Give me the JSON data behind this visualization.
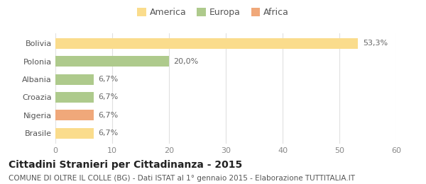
{
  "categories": [
    "Brasile",
    "Nigeria",
    "Croazia",
    "Albania",
    "Polonia",
    "Bolivia"
  ],
  "values": [
    6.7,
    6.7,
    6.7,
    6.7,
    20.0,
    53.3
  ],
  "bar_colors": [
    "#FADC8C",
    "#F0A87A",
    "#AECA8C",
    "#AECA8C",
    "#AECA8C",
    "#FADC8C"
  ],
  "bar_labels": [
    "6,7%",
    "6,7%",
    "6,7%",
    "6,7%",
    "20,0%",
    "53,3%"
  ],
  "legend_labels": [
    "America",
    "Europa",
    "Africa"
  ],
  "legend_colors": [
    "#FADC8C",
    "#AECA8C",
    "#F0A87A"
  ],
  "xlim": [
    0,
    60
  ],
  "xticks": [
    0,
    10,
    20,
    30,
    40,
    50,
    60
  ],
  "title": "Cittadini Stranieri per Cittadinanza - 2015",
  "subtitle": "COMUNE DI OLTRE IL COLLE (BG) - Dati ISTAT al 1° gennaio 2015 - Elaborazione TUTTITALIA.IT",
  "title_fontsize": 10,
  "subtitle_fontsize": 7.5,
  "label_fontsize": 8,
  "tick_fontsize": 8,
  "legend_fontsize": 9,
  "background_color": "#ffffff",
  "grid_color": "#e0e0e0"
}
